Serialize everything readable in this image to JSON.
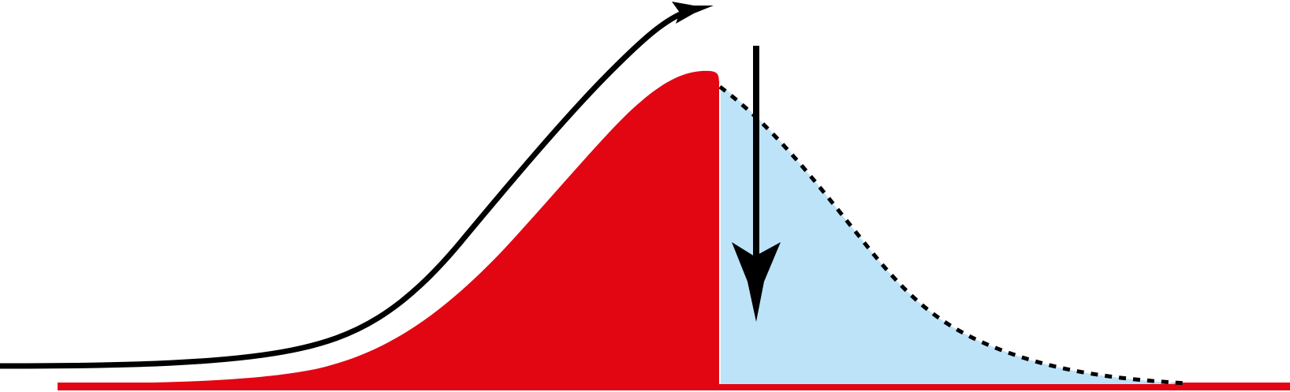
{
  "diagram": {
    "colors": {
      "background": "#ffffff",
      "filled_region": "#e20613",
      "tail_region": "#bde3f8",
      "baseline": "#e20613",
      "arrows": "#000000",
      "dotted_curve": "#000000"
    },
    "elements": [
      "rising-curve-arrow",
      "red-filled-region",
      "light-blue-tail-region",
      "dotted-tail-curve",
      "downward-arrow",
      "baseline"
    ]
  }
}
